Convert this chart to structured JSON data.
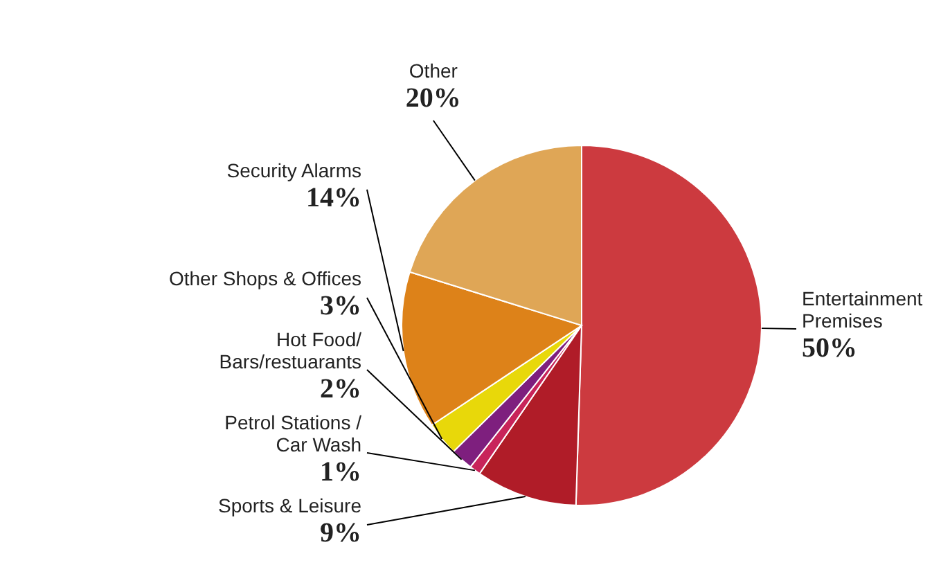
{
  "chart_data": {
    "type": "pie",
    "categories": [
      "Entertainment\nPremises",
      "Sports & Leisure",
      "Petrol Stations /\nCar Wash",
      "Hot Food/\nBars/restuarants",
      "Other Shops & Offices",
      "Security Alarms",
      "Other"
    ],
    "values": [
      50,
      9,
      1,
      2,
      3,
      14,
      20
    ],
    "colors": [
      "#cc3a3f",
      "#b01c28",
      "#c8245a",
      "#7e1f7e",
      "#e8d80a",
      "#dd8219",
      "#dfa656"
    ],
    "value_labels": [
      "50%",
      "9%",
      "1%",
      "2%",
      "3%",
      "14%",
      "20%"
    ]
  }
}
